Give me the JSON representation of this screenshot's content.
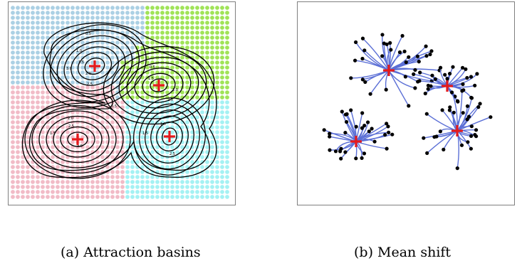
{
  "captions": {
    "a": "(a) Attraction basins",
    "b": "(b) Mean shift"
  },
  "basin_colors": {
    "top_left": "#a7cde3",
    "top_right": "#9be24f",
    "bottom_left": "#f0b7c4",
    "bottom_right": "#9ff0f2"
  },
  "contour_color": "#000000",
  "mode_marker_color": "#e41a1c",
  "trajectory_color": "#5b6fd6",
  "point_color": "#000000",
  "contour_levels": [
    "0.5",
    "1.0",
    "1.5",
    "2.0",
    "2.5",
    "3.0"
  ]
}
